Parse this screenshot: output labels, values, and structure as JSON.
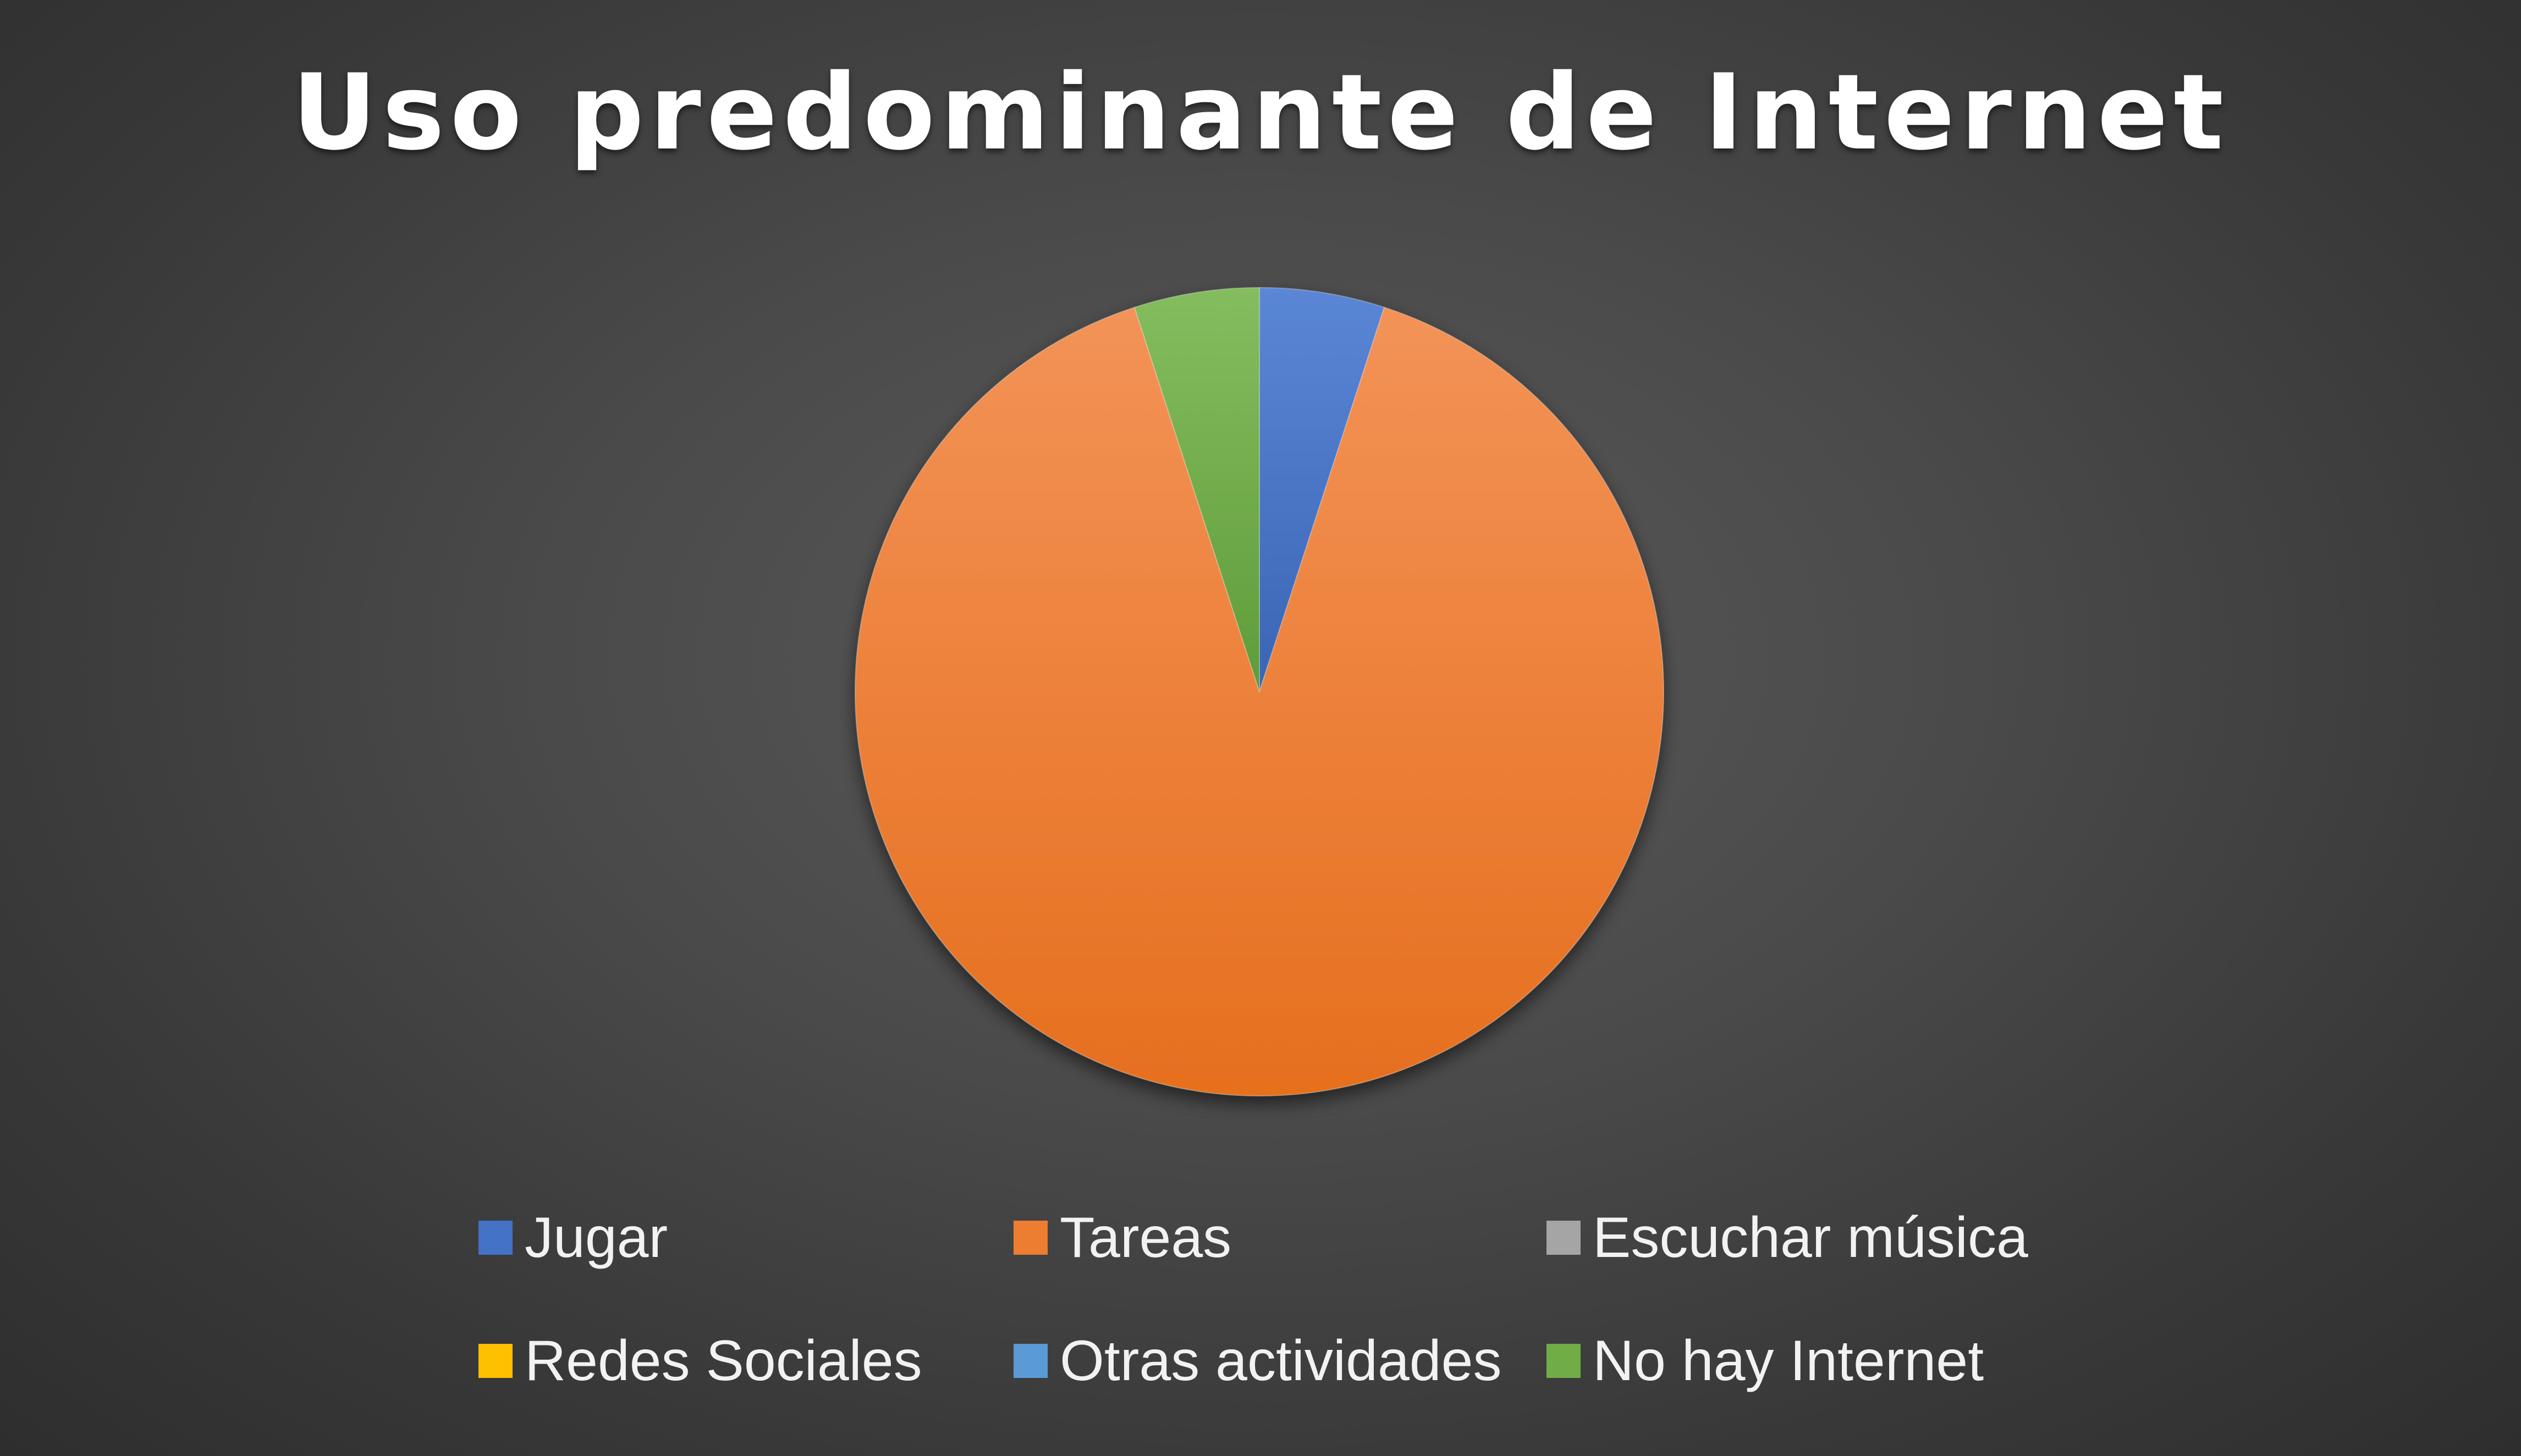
{
  "chart_data": {
    "type": "pie",
    "title": "Uso predominante de Internet",
    "categories": [
      "Jugar",
      "Tareas",
      "Escuchar música",
      "Redes Sociales",
      "Otras actividades",
      "No hay Internet"
    ],
    "values": [
      5,
      90,
      0,
      0,
      0,
      5
    ],
    "colors": [
      "#4472c4",
      "#ed7d31",
      "#a5a5a5",
      "#ffc000",
      "#5b9bd5",
      "#70ad47"
    ],
    "legend_position": "bottom",
    "legend": [
      {
        "label": "Jugar",
        "color": "#4472c4"
      },
      {
        "label": "Tareas",
        "color": "#ed7d31"
      },
      {
        "label": "Escuchar música",
        "color": "#a5a5a5"
      },
      {
        "label": "Redes Sociales",
        "color": "#ffc000"
      },
      {
        "label": "Otras actividades",
        "color": "#5b9bd5"
      },
      {
        "label": "No hay Internet",
        "color": "#70ad47"
      }
    ]
  }
}
